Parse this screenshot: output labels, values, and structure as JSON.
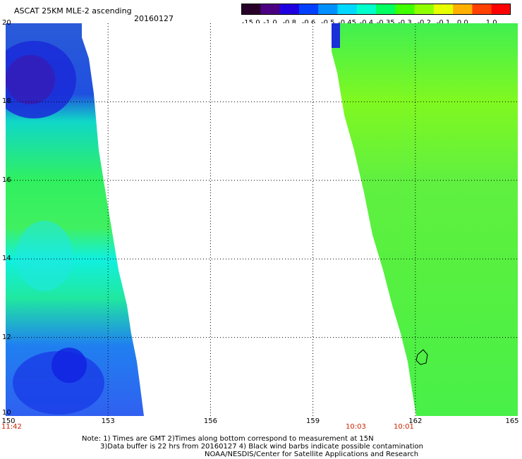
{
  "header": {
    "title": "ASCAT 25KM MLE-2 ascending",
    "date": "20160127"
  },
  "colorbar": {
    "labels": [
      "-15.0",
      "-1.0",
      "-0.8",
      "-0.6",
      "-0.5",
      "-0.45",
      "-0.4",
      "-0.35",
      "-0.3",
      "-0.2",
      "-0.1",
      "0.0",
      "1.0"
    ],
    "colors": [
      "#280028",
      "#4b0082",
      "#2000e0",
      "#0040ff",
      "#0090ff",
      "#00d8ff",
      "#00ffcc",
      "#00ff60",
      "#40ff00",
      "#90ff00",
      "#e8ff00",
      "#ffb000",
      "#ff4000",
      "#ff0000"
    ]
  },
  "map": {
    "lat_labels": [
      "20",
      "18",
      "16",
      "14",
      "12",
      "10"
    ],
    "lon_labels": [
      "150",
      "153",
      "156",
      "159",
      "162",
      "165"
    ],
    "lon_range": [
      150,
      165
    ],
    "lat_range": [
      10,
      20
    ],
    "time_labels": [
      "11:42",
      "10:03",
      "10:01"
    ]
  },
  "notes": {
    "line1": "Note: 1) Times are GMT 2)Times along bottom correspond to measurement at 15N",
    "line2": "3)Data buffer is 22 hrs from 20160127 4) Black wind barbs indicate possible contamination",
    "line3": "NOAA/NESDIS/Center for Satellite Applications and Research"
  }
}
